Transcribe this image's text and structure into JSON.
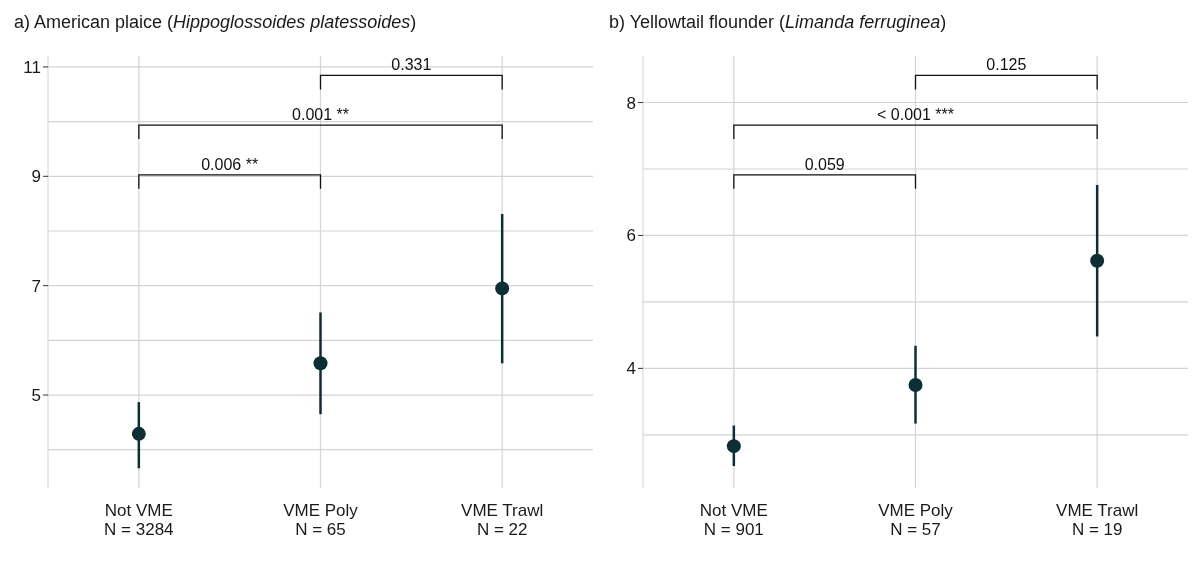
{
  "chart_data": [
    {
      "type": "scatter",
      "title": "a) American plaice (Hippoglossoides platessoides)",
      "categories": [
        "Not VME\nN = 3284",
        "VME Poly\nN = 65",
        "VME Trawl\nN = 22"
      ],
      "series": [
        {
          "color": "#0d2f33",
          "values": [
            4.29,
            5.58,
            6.95
          ],
          "errors": [
            [
              3.66,
              4.87
            ],
            [
              4.65,
              6.51
            ],
            [
              5.58,
              8.31
            ]
          ]
        }
      ],
      "ylim": [
        3.3,
        11.2
      ],
      "yticks": [
        5,
        7,
        9,
        11
      ],
      "grid": true,
      "marker": "circle",
      "annotations": [
        "0.331",
        "0.001 **",
        "0.006 **"
      ]
    },
    {
      "type": "scatter",
      "title": "b) Yellowtail flounder (Limanda ferruginea)",
      "categories": [
        "Not VME\nN = 901",
        "VME Poly\nN = 57",
        "VME Trawl\nN = 19"
      ],
      "series": [
        {
          "color": "#0d2f33",
          "values": [
            2.83,
            3.75,
            5.62
          ],
          "errors": [
            [
              2.53,
              3.14
            ],
            [
              3.17,
              4.34
            ],
            [
              4.48,
              6.76
            ]
          ]
        }
      ],
      "ylim": [
        2.2,
        8.7
      ],
      "yticks": [
        4,
        6,
        8
      ],
      "grid": true,
      "marker": "circle",
      "annotations": [
        "0.125",
        "< 0.001 ***",
        "0.059"
      ]
    }
  ]
}
